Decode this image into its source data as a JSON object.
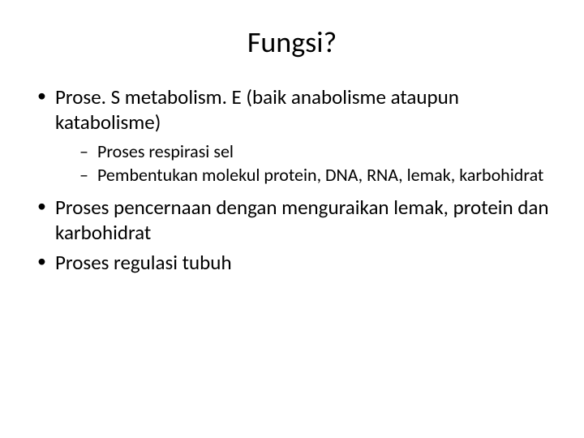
{
  "slide": {
    "title": "Fungsi?",
    "title_fontsize": 36,
    "body_fontsize": 25,
    "sub_body_fontsize": 22,
    "text_color": "#000000",
    "background_color": "#ffffff",
    "bullets": [
      {
        "text": "Prose. S metabolism. E (baik anabolisme ataupun katabolisme)",
        "sub_bullets": [
          {
            "text": "Proses respirasi sel"
          },
          {
            "text": "Pembentukan molekul protein, DNA, RNA, lemak, karbohidrat"
          }
        ]
      },
      {
        "text": "Proses pencernaan dengan menguraikan lemak, protein dan karbohidrat",
        "sub_bullets": []
      },
      {
        "text": "Proses regulasi tubuh",
        "sub_bullets": []
      }
    ]
  }
}
